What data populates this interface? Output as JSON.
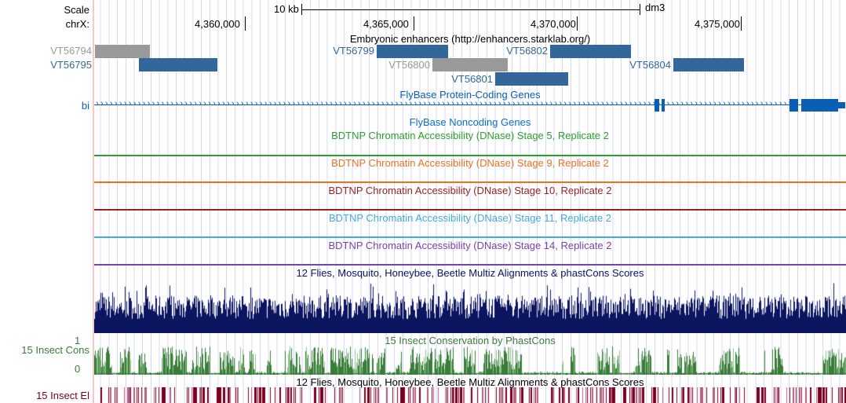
{
  "ruler": {
    "scale_label": "Scale",
    "scale_bar": "10 kb",
    "assembly": "dm3",
    "chrom_label": "chrX:",
    "ticks": [
      "4,360,000",
      "4,365,000",
      "4,370,000",
      "4,375,000"
    ]
  },
  "enhancers": {
    "title": "Embryonic enhancers (http://enhancers.starklab.org/)",
    "items": [
      {
        "name": "VT56794",
        "color": "gray"
      },
      {
        "name": "VT56795",
        "color": "blue"
      },
      {
        "name": "VT56799",
        "color": "blue"
      },
      {
        "name": "VT56800",
        "color": "gray"
      },
      {
        "name": "VT56801",
        "color": "blue"
      },
      {
        "name": "VT56802",
        "color": "blue"
      },
      {
        "name": "VT56804",
        "color": "blue"
      }
    ]
  },
  "genes": {
    "title": "FlyBase Protein-Coding Genes",
    "gene_label": "bi",
    "color": "#0a5fb4"
  },
  "noncoding": {
    "title": "FlyBase Noncoding Genes"
  },
  "dnase": [
    {
      "title": "BDTNP Chromatin Accessibility (DNase) Stage 5, Replicate 2",
      "color": "#2ca02c"
    },
    {
      "title": "BDTNP Chromatin Accessibility (DNase) Stage 9, Replicate 2",
      "color": "#f07020"
    },
    {
      "title": "BDTNP Chromatin Accessibility (DNase) Stage 10, Replicate 2",
      "color": "#992222"
    },
    {
      "title": "BDTNP Chromatin Accessibility (DNase) Stage 11, Replicate 2",
      "color": "#44aadd"
    },
    {
      "title": "BDTNP Chromatin Accessibility (DNase) Stage 14, Replicate 2",
      "color": "#7744aa"
    }
  ],
  "multiz": {
    "title": "12 Flies, Mosquito, Honeybee, Beetle Multiz Alignments & phastCons Scores",
    "color": "#0b1560"
  },
  "cons": {
    "title": "15 Insect Conservation by PhastCons",
    "label": "15 Insect Cons",
    "ymax": "1",
    "ymin": "0",
    "color": "#3a7d3a"
  },
  "elements": {
    "title": "12 Flies, Mosquito, Honeybee, Beetle Multiz Alignments & phastCons Scores",
    "label": "15 Insect El",
    "color": "#770022"
  }
}
